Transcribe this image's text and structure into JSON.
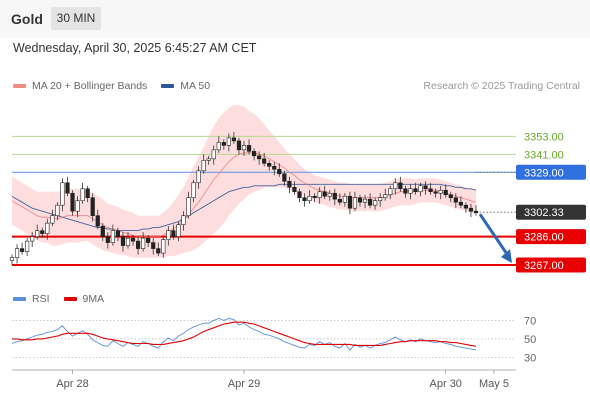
{
  "header": {
    "instrument": "Gold",
    "timeframe": "30 MIN"
  },
  "datetime": "Wednesday, April 30, 2025 6:45:27 AM CET",
  "legend": {
    "items": [
      {
        "label": "MA 20 + Bollinger Bands",
        "color": "#f28b82"
      },
      {
        "label": "MA 50",
        "color": "#2b5797"
      }
    ],
    "credit": "Research © 2025 Trading Central"
  },
  "rsi_legend": {
    "items": [
      {
        "label": "RSI",
        "color": "#5b8dd9"
      },
      {
        "label": "9MA",
        "color": "#e00000"
      }
    ]
  },
  "chart_data": [
    {
      "type": "candlestick",
      "y_range": [
        3255,
        3380
      ],
      "x_labels": [
        "Apr 28",
        "Apr 29",
        "Apr 30",
        "May 5"
      ],
      "levels": [
        {
          "value": 3353.0,
          "label": "3353.00",
          "style": "resistance-minor"
        },
        {
          "value": 3341.0,
          "label": "3341.00",
          "style": "resistance-minor"
        },
        {
          "value": 3329.0,
          "label": "3329.00",
          "style": "pivot"
        },
        {
          "value": 3302.33,
          "label": "3302.33",
          "style": "last-price"
        },
        {
          "value": 3286.0,
          "label": "3286.00",
          "style": "support"
        },
        {
          "value": 3267.0,
          "label": "3267.00",
          "style": "support"
        }
      ],
      "close": [
        3272,
        3278,
        3276,
        3283,
        3286,
        3290,
        3288,
        3295,
        3300,
        3307,
        3322,
        3315,
        3303,
        3310,
        3318,
        3312,
        3300,
        3293,
        3286,
        3282,
        3290,
        3286,
        3280,
        3285,
        3283,
        3278,
        3285,
        3282,
        3278,
        3275,
        3284,
        3290,
        3286,
        3294,
        3300,
        3312,
        3322,
        3330,
        3337,
        3338,
        3344,
        3349,
        3347,
        3352,
        3350,
        3344,
        3347,
        3343,
        3340,
        3338,
        3335,
        3333,
        3331,
        3328,
        3323,
        3319,
        3316,
        3312,
        3310,
        3313,
        3312,
        3316,
        3313,
        3315,
        3311,
        3309,
        3313,
        3305,
        3312,
        3309,
        3311,
        3307,
        3310,
        3312,
        3314,
        3318,
        3322,
        3318,
        3315,
        3318,
        3316,
        3320,
        3318,
        3316,
        3315,
        3317,
        3314,
        3312,
        3309,
        3307,
        3305,
        3303,
        3302
      ],
      "ma20": [
        3310,
        3308,
        3306,
        3304,
        3302,
        3300,
        3299,
        3299,
        3298,
        3298,
        3299,
        3300,
        3300,
        3300,
        3300,
        3300,
        3298,
        3296,
        3294,
        3292,
        3291,
        3290,
        3289,
        3288,
        3287,
        3286,
        3286,
        3286,
        3286,
        3286,
        3287,
        3289,
        3291,
        3294,
        3297,
        3301,
        3305,
        3309,
        3314,
        3319,
        3324,
        3328,
        3332,
        3336,
        3339,
        3341,
        3342,
        3342,
        3342,
        3341,
        3340,
        3338,
        3336,
        3334,
        3332,
        3329,
        3327,
        3324,
        3322,
        3320,
        3318,
        3317,
        3316,
        3315,
        3314,
        3313,
        3313,
        3312,
        3312,
        3312,
        3312,
        3312,
        3312,
        3312,
        3313,
        3314,
        3315,
        3316,
        3316,
        3316,
        3316,
        3317,
        3317,
        3317,
        3317,
        3316,
        3315,
        3314,
        3313,
        3312,
        3311,
        3310,
        3309
      ],
      "ma50": [
        3313,
        3311,
        3309,
        3307,
        3305,
        3304,
        3303,
        3302,
        3301,
        3300,
        3299,
        3298,
        3297,
        3296,
        3295,
        3294,
        3293,
        3292,
        3292,
        3291,
        3291,
        3290,
        3290,
        3290,
        3290,
        3290,
        3291,
        3291,
        3292,
        3292,
        3293,
        3294,
        3295,
        3296,
        3298,
        3300,
        3302,
        3304,
        3306,
        3308,
        3310,
        3312,
        3314,
        3316,
        3317,
        3318,
        3319,
        3319,
        3320,
        3320,
        3320,
        3320,
        3320,
        3321,
        3321,
        3321,
        3321,
        3321,
        3321,
        3321,
        3321,
        3321,
        3321,
        3321,
        3321,
        3321,
        3321,
        3321,
        3321,
        3321,
        3321,
        3321,
        3321,
        3321,
        3321,
        3321,
        3321,
        3321,
        3321,
        3321,
        3321,
        3321,
        3321,
        3321,
        3321,
        3321,
        3320,
        3320,
        3319,
        3319,
        3318,
        3318,
        3317
      ],
      "bb_width": [
        16,
        16,
        16,
        16,
        16,
        16,
        17,
        17,
        18,
        18,
        18,
        18,
        18,
        18,
        17,
        17,
        17,
        17,
        17,
        16,
        16,
        16,
        15,
        15,
        15,
        14,
        14,
        14,
        14,
        14,
        15,
        16,
        18,
        20,
        22,
        25,
        28,
        30,
        32,
        34,
        36,
        37,
        37,
        36,
        35,
        33,
        31,
        28,
        26,
        24,
        21,
        19,
        17,
        15,
        13,
        12,
        11,
        10,
        9,
        9,
        9,
        9,
        9,
        9,
        9,
        9,
        9,
        9,
        9,
        9,
        9,
        9,
        9,
        9,
        9,
        9,
        9,
        9,
        9,
        9,
        8,
        8,
        8,
        8,
        8,
        8,
        8,
        8,
        8,
        8,
        8,
        8,
        8
      ],
      "projection": {
        "from": 3302.33,
        "to": 3267.0
      }
    },
    {
      "type": "line",
      "name": "RSI",
      "y_range": [
        25,
        78
      ],
      "y_ticks": [
        70,
        50,
        30
      ],
      "series": [
        {
          "name": "RSI",
          "values": [
            45,
            47,
            48,
            50,
            52,
            54,
            55,
            57,
            58,
            60,
            64,
            58,
            53,
            56,
            59,
            55,
            49,
            46,
            43,
            42,
            48,
            45,
            42,
            46,
            44,
            42,
            47,
            45,
            42,
            40,
            47,
            51,
            48,
            53,
            56,
            60,
            63,
            65,
            67,
            67,
            70,
            72,
            70,
            72,
            71,
            65,
            67,
            63,
            60,
            58,
            55,
            54,
            52,
            50,
            47,
            45,
            43,
            41,
            40,
            44,
            43,
            47,
            44,
            46,
            42,
            40,
            45,
            38,
            44,
            41,
            43,
            40,
            43,
            45,
            46,
            49,
            52,
            49,
            47,
            49,
            47,
            50,
            48,
            47,
            46,
            47,
            45,
            44,
            42,
            41,
            40,
            39,
            38
          ]
        },
        {
          "name": "9MA",
          "values": [
            50,
            50,
            49,
            49,
            49,
            50,
            50,
            51,
            52,
            53,
            55,
            56,
            56,
            56,
            56,
            56,
            55,
            53,
            51,
            50,
            49,
            48,
            47,
            46,
            45,
            45,
            45,
            45,
            44,
            44,
            44,
            45,
            46,
            47,
            48,
            50,
            52,
            55,
            58,
            60,
            62,
            64,
            66,
            67,
            68,
            68,
            68,
            67,
            66,
            64,
            62,
            60,
            58,
            56,
            54,
            52,
            50,
            48,
            46,
            45,
            44,
            44,
            44,
            44,
            44,
            44,
            44,
            44,
            43,
            43,
            43,
            43,
            43,
            43,
            44,
            45,
            46,
            47,
            47,
            48,
            48,
            48,
            48,
            48,
            48,
            47,
            47,
            46,
            46,
            45,
            44,
            43,
            42
          ]
        }
      ]
    }
  ]
}
